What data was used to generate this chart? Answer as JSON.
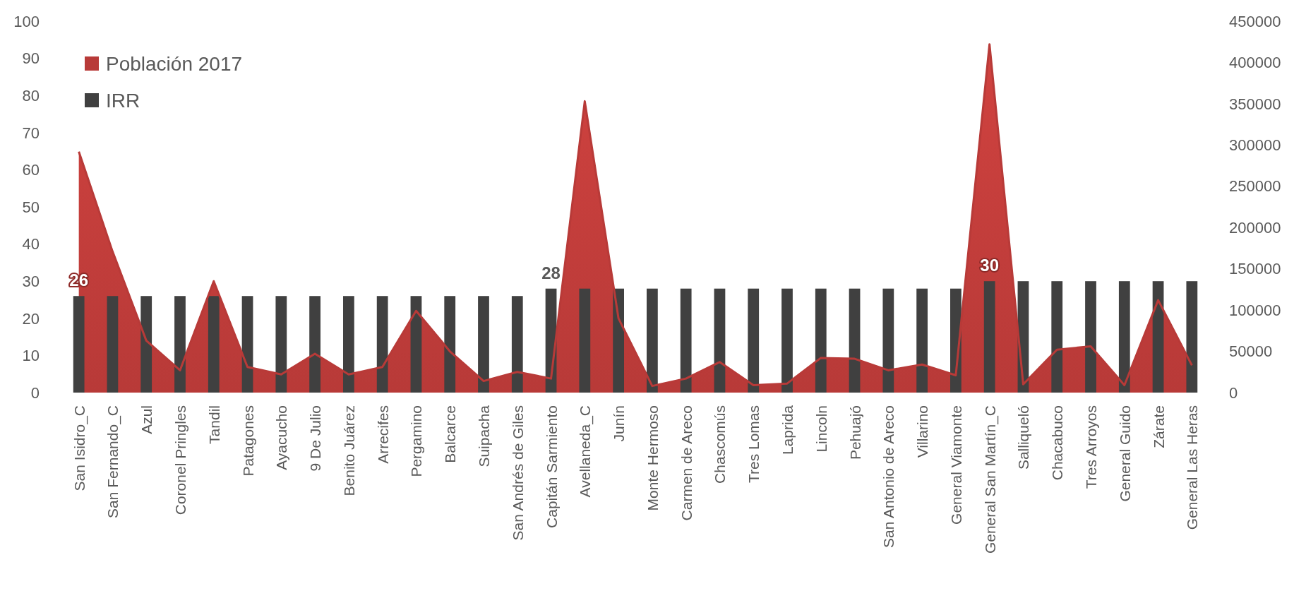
{
  "chart_data": {
    "type": "bar",
    "categories": [
      "San Isidro_C",
      "San Fernando_C",
      "Azul",
      "Coronel Pringles",
      "Tandil",
      "Patagones",
      "Ayacucho",
      "9 De Julio",
      "Benito Juárez",
      "Arrecifes",
      "Pergamino",
      "Balcarce",
      "Suipacha",
      "San Andrés de Giles",
      "Capitán Sarmiento",
      "Avellaneda_C",
      "Junín",
      "Monte Hermoso",
      "Carmen de Areco",
      "Chascomús",
      "Tres Lomas",
      "Laprida",
      "Lincoln",
      "Pehuajó",
      "San Antonio de Areco",
      "Villarino",
      "General Viamonte",
      "General San Martín_C",
      "Salliqueló",
      "Chacabuco",
      "Tres Arroyos",
      "General Guido",
      "Zárate",
      "General Las Heras"
    ],
    "series": [
      {
        "name": "Población 2017",
        "type": "area",
        "axis": "y2",
        "color": "#b83a38",
        "values": [
          292000,
          171000,
          63000,
          27000,
          135000,
          31000,
          22000,
          47000,
          22000,
          31000,
          99000,
          50000,
          14000,
          25000,
          17000,
          353000,
          90000,
          8000,
          17000,
          37000,
          9000,
          11000,
          42000,
          41000,
          27000,
          34000,
          21000,
          422000,
          10000,
          52000,
          56000,
          9000,
          112000,
          33000
        ]
      },
      {
        "name": "IRR",
        "color": "#404040",
        "values": [
          26,
          26,
          26,
          26,
          26,
          26,
          26,
          26,
          26,
          26,
          26,
          26,
          26,
          26,
          28,
          28,
          28,
          28,
          28,
          28,
          28,
          28,
          28,
          28,
          28,
          28,
          28,
          30,
          30,
          30,
          30,
          30,
          30,
          30
        ],
        "value_labels": [
          "26",
          null,
          null,
          null,
          null,
          null,
          null,
          null,
          null,
          null,
          null,
          null,
          null,
          null,
          "28",
          null,
          null,
          null,
          null,
          null,
          null,
          null,
          null,
          null,
          null,
          null,
          null,
          "30",
          null,
          null,
          null,
          null,
          null,
          null
        ]
      }
    ],
    "ylim": [
      0,
      100
    ],
    "yticks": [
      0,
      10,
      20,
      30,
      40,
      50,
      60,
      70,
      80,
      90,
      100
    ],
    "y2lim": [
      0,
      450000
    ],
    "y2ticks": [
      0,
      50000,
      100000,
      150000,
      200000,
      250000,
      300000,
      350000,
      400000,
      450000
    ],
    "legend": "top left",
    "grid": false
  }
}
